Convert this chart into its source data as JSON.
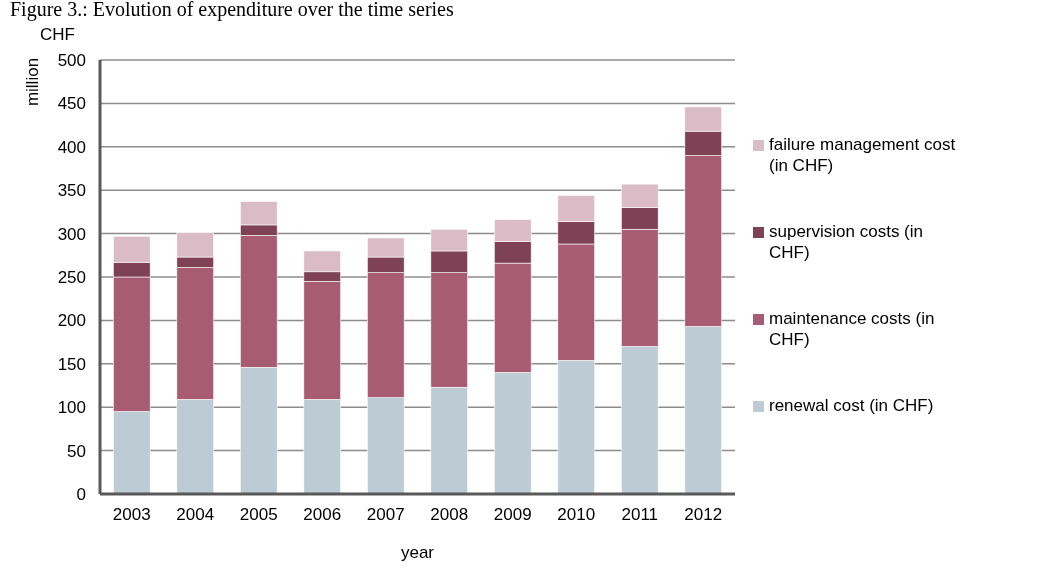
{
  "chart_data": {
    "type": "bar",
    "title": "Figure 3.: Evolution of expenditure over the time series",
    "stacked": true,
    "xlabel": "year",
    "ylabel": "million",
    "annotations": [
      "CHF"
    ],
    "categories": [
      "2003",
      "2004",
      "2005",
      "2006",
      "2007",
      "2008",
      "2009",
      "2010",
      "2011",
      "2012"
    ],
    "series": [
      {
        "name": "renewal cost  (in CHF)",
        "color": "#bdcbd4",
        "values": [
          95,
          109,
          146,
          109,
          111,
          123,
          140,
          154,
          170,
          193
        ]
      },
      {
        "name": "maintenance costs (in CHF)",
        "color": "#a75c74",
        "values": [
          155,
          152,
          152,
          136,
          144,
          132,
          126,
          134,
          135,
          197
        ]
      },
      {
        "name": "supervision costs (in CHF)",
        "color": "#7f4155",
        "values": [
          17,
          12,
          12,
          11,
          18,
          25,
          25,
          26,
          25,
          28
        ]
      },
      {
        "name": "failure management cost (in CHF)",
        "color": "#dbbcc6",
        "values": [
          30,
          28,
          27,
          24,
          22,
          25,
          25,
          30,
          27,
          28
        ]
      }
    ],
    "ylim": [
      0,
      500
    ],
    "yticks": [
      0,
      50,
      100,
      150,
      200,
      250,
      300,
      350,
      400,
      450,
      500
    ],
    "grid": "y",
    "legend": "right"
  }
}
